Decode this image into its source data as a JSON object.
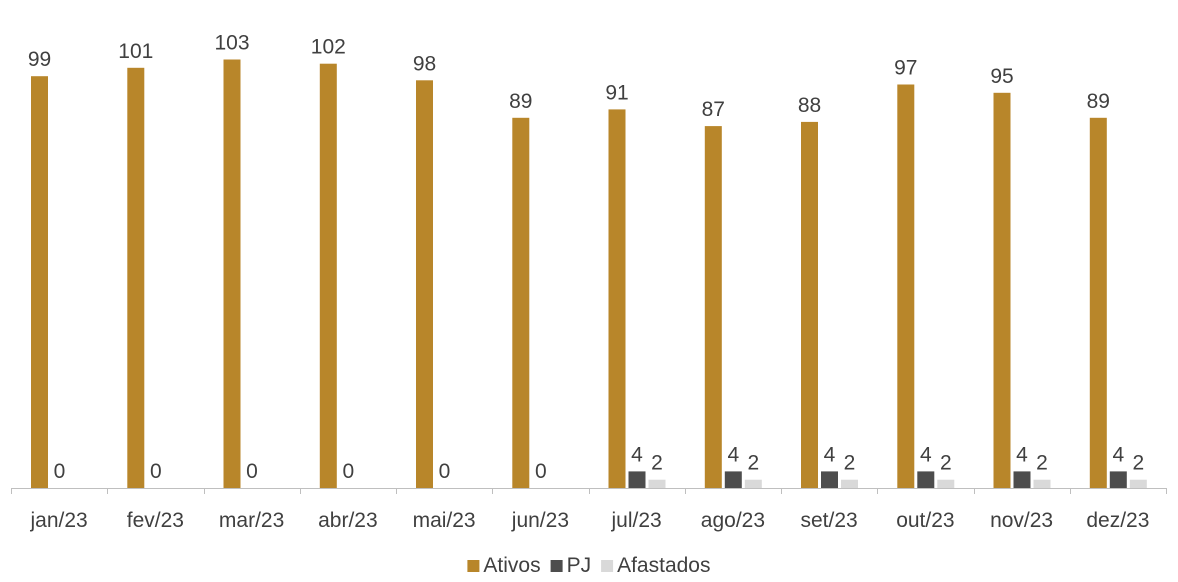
{
  "chart_data": {
    "type": "bar",
    "categories": [
      "jan/23",
      "fev/23",
      "mar/23",
      "abr/23",
      "mai/23",
      "jun/23",
      "jul/23",
      "ago/23",
      "set/23",
      "out/23",
      "nov/23",
      "dez/23"
    ],
    "series": [
      {
        "name": "Ativos",
        "color": "#B8862A",
        "values": [
          99,
          101,
          103,
          102,
          98,
          89,
          91,
          87,
          88,
          97,
          95,
          89
        ],
        "labels": [
          "99",
          "101",
          "103",
          "102",
          "98",
          "89",
          "91",
          "87",
          "88",
          "97",
          "95",
          "89"
        ]
      },
      {
        "name": "PJ",
        "color": "#4D4D4D",
        "values": [
          0,
          0,
          0,
          0,
          0,
          0,
          4,
          4,
          4,
          4,
          4,
          4
        ],
        "labels": [
          "0",
          "0",
          "0",
          "0",
          "0",
          "0",
          "4",
          "4",
          "4",
          "4",
          "4",
          "4"
        ]
      },
      {
        "name": "Afastados",
        "color": "#D9D9D9",
        "values": [
          null,
          null,
          null,
          null,
          null,
          null,
          2,
          2,
          2,
          2,
          2,
          2
        ],
        "labels": [
          "",
          "",
          "",
          "",
          "",
          "",
          "2",
          "2",
          "2",
          "2",
          "2",
          "2"
        ]
      }
    ],
    "ylim": [
      0,
      105
    ],
    "grid": false,
    "legend_position": "bottom",
    "title": "",
    "xlabel": "",
    "ylabel": ""
  }
}
